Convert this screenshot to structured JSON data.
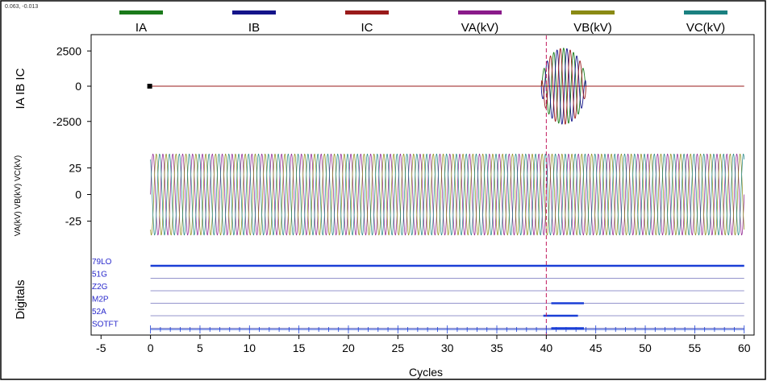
{
  "cursor_readout": "0.063, -0.013",
  "legend": [
    {
      "label": "IA",
      "color": "#1a7a1a"
    },
    {
      "label": "IB",
      "color": "#14148a"
    },
    {
      "label": "IC",
      "color": "#9a1a1a"
    },
    {
      "label": "VA(kV)",
      "color": "#8a1a8a"
    },
    {
      "label": "VB(kV)",
      "color": "#8a8a14"
    },
    {
      "label": "VC(kV)",
      "color": "#1a8080"
    }
  ],
  "current_panel": {
    "ylabel": "IA IB IC",
    "yticks": [
      2500,
      0,
      -2500
    ],
    "ylim": [
      -3600,
      3600
    ]
  },
  "voltage_panel": {
    "ylabel": "VA(kV) VB(kV) VC(kV)",
    "yticks": [
      25,
      0,
      -25
    ],
    "ylim": [
      -48,
      48
    ]
  },
  "digitals_panel": {
    "ylabel": "Digitals",
    "label_color": "#2a2acc",
    "channels": [
      {
        "name": "79LO",
        "segments": [
          [
            0,
            60
          ]
        ]
      },
      {
        "name": "51G",
        "segments": []
      },
      {
        "name": "Z2G",
        "segments": []
      },
      {
        "name": "M2P",
        "segments": [
          [
            40.5,
            43.8
          ]
        ]
      },
      {
        "name": "52A",
        "segments": [
          [
            39.7,
            43.2
          ]
        ]
      },
      {
        "name": "SOTFT",
        "segments": [
          [
            40.5,
            43.8
          ]
        ]
      }
    ]
  },
  "chart_data": {
    "type": "line",
    "title": "",
    "xlabel": "Cycles",
    "xlim": [
      -6,
      61
    ],
    "xticks": [
      -5,
      0,
      5,
      10,
      15,
      20,
      25,
      30,
      35,
      40,
      45,
      50,
      55,
      60
    ],
    "marker_x": 40,
    "currents": {
      "prefault_value": 0,
      "fault_start": 39.5,
      "fault_end": 44,
      "fault_peak": 2700
    },
    "voltages": {
      "start": 0,
      "end": 60,
      "peak": 38,
      "phase_order": [
        "VA(kV)",
        "VB(kV)",
        "VC(kV)"
      ]
    }
  }
}
